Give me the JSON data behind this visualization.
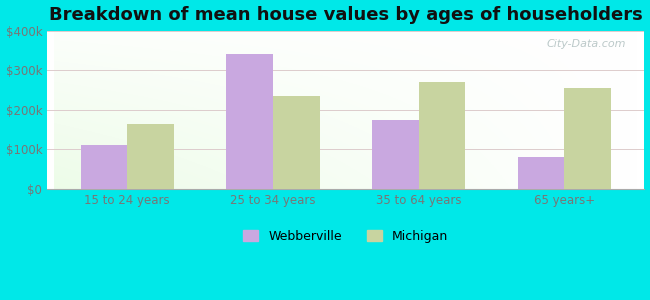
{
  "title": "Breakdown of mean house values by ages of householders",
  "categories": [
    "15 to 24 years",
    "25 to 34 years",
    "35 to 64 years",
    "65 years+"
  ],
  "webberville": [
    110000,
    340000,
    175000,
    80000
  ],
  "michigan": [
    165000,
    235000,
    270000,
    255000
  ],
  "webberville_color": "#c9a8e0",
  "michigan_color": "#c8d4a0",
  "background_color": "#00e8e8",
  "ylim": [
    0,
    400000
  ],
  "yticks": [
    0,
    100000,
    200000,
    300000,
    400000
  ],
  "ytick_labels": [
    "$0",
    "$100k",
    "$200k",
    "$300k",
    "$400k"
  ],
  "bar_width": 0.32,
  "title_fontsize": 13,
  "legend_labels": [
    "Webberville",
    "Michigan"
  ],
  "watermark": "City-Data.com"
}
